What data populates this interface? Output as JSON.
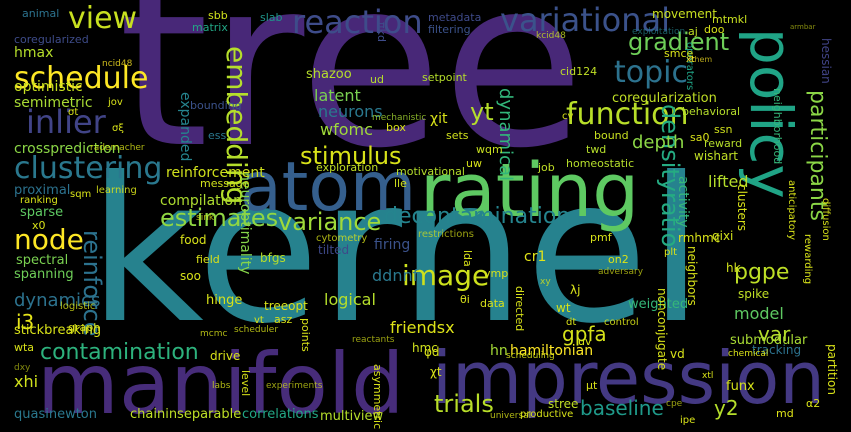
{
  "words": [
    {
      "id": "tree",
      "text": "tree",
      "color": "#482878"
    },
    {
      "id": "kernel",
      "text": "kernel",
      "color": "#26828e"
    },
    {
      "id": "manifold",
      "text": "manifold",
      "color": "#472c7a"
    },
    {
      "id": "impression",
      "text": "impression",
      "color": "#443983"
    },
    {
      "id": "atom",
      "text": "atom",
      "color": "#355f8d"
    },
    {
      "id": "rating",
      "text": "rating",
      "color": "#5ec962"
    },
    {
      "id": "policy",
      "text": "policy",
      "color": "#20a486"
    },
    {
      "id": "reaction",
      "text": "reaction",
      "color": "#3e4c8a"
    },
    {
      "id": "variational",
      "text": "variational",
      "color": "#3b528b"
    },
    {
      "id": "view",
      "text": "view",
      "color": "#c8e020"
    },
    {
      "id": "schedule",
      "text": "schedule",
      "color": "#fde725"
    },
    {
      "id": "inlier",
      "text": "inlier",
      "color": "#414487"
    },
    {
      "id": "embedding",
      "text": "embedding",
      "color": "#b5de2b"
    },
    {
      "id": "function",
      "text": "function",
      "color": "#b8de29"
    },
    {
      "id": "topic",
      "text": "topic",
      "color": "#2c728e"
    },
    {
      "id": "gradient",
      "text": "gradient",
      "color": "#6ece58"
    },
    {
      "id": "clustering",
      "text": "clustering",
      "color": "#2a788e"
    },
    {
      "id": "stimulus",
      "text": "stimulus",
      "color": "#d8e219"
    },
    {
      "id": "node",
      "text": "node",
      "color": "#fde725"
    },
    {
      "id": "decontamination",
      "text": "decontamination",
      "color": "#25848e"
    },
    {
      "id": "estimates",
      "text": "estimates",
      "color": "#90d743"
    },
    {
      "id": "variance",
      "text": "variance",
      "color": "#a0da39"
    },
    {
      "id": "densityratio",
      "text": "densityratio",
      "color": "#25ab82"
    },
    {
      "id": "participants",
      "text": "participants",
      "color": "#8bd646"
    },
    {
      "id": "reinforce",
      "text": "reinforce",
      "color": "#2c728e"
    },
    {
      "id": "image",
      "text": "image",
      "color": "#cde11d"
    },
    {
      "id": "contamination",
      "text": "contamination",
      "color": "#2db27d"
    },
    {
      "id": "trials",
      "text": "trials",
      "color": "#b8de29"
    },
    {
      "id": "baseline",
      "text": "baseline",
      "color": "#1f9a8a"
    },
    {
      "id": "pgpe",
      "text": "pgpe",
      "color": "#bddf26"
    },
    {
      "id": "var",
      "text": "var",
      "color": "#b5de2b"
    },
    {
      "id": "gpfa",
      "text": "gpfa",
      "color": "#d5e21a"
    },
    {
      "id": "i3",
      "text": "i3",
      "color": "#e5e419"
    },
    {
      "id": "y2",
      "text": "y2",
      "color": "#b5de2b"
    },
    {
      "id": "yt",
      "text": "yt",
      "color": "#b5de2b"
    },
    {
      "id": "depth",
      "text": "depth",
      "color": "#8bd646"
    },
    {
      "id": "dynamical",
      "text": "dynamical",
      "color": "#32b67a"
    },
    {
      "id": "xhi",
      "text": "xhi",
      "color": "#d0e11c"
    },
    {
      "id": "dynamics",
      "text": "dynamics",
      "color": "#2c728e"
    },
    {
      "id": "model",
      "text": "model",
      "color": "#5ec962"
    },
    {
      "id": "latent",
      "text": "latent",
      "color": "#7ad151"
    },
    {
      "id": "neurons",
      "text": "neurons",
      "color": "#2a788e"
    },
    {
      "id": "wfomc",
      "text": "wfomc",
      "color": "#9fda3a"
    },
    {
      "id": "lifted",
      "text": "lifted",
      "color": "#b5de2b"
    },
    {
      "id": "expanded",
      "text": "expanded",
      "color": "#25848e"
    },
    {
      "id": "neuroptimality",
      "text": "neuroptimality",
      "color": "#86d549"
    },
    {
      "id": "crossprediction",
      "text": "crossprediction",
      "color": "#8bd646"
    },
    {
      "id": "semimetric",
      "text": "semimetric",
      "color": "#a8db34"
    },
    {
      "id": "optimistic",
      "text": "optimistic",
      "color": "#c8e020"
    },
    {
      "id": "hmax",
      "text": "hmax",
      "color": "#b5de2b"
    },
    {
      "id": "coregularization",
      "text": "coregularization",
      "color": "#c0df25"
    },
    {
      "id": "compilation",
      "text": "compilation",
      "color": "#addc30"
    },
    {
      "id": "reinforcement",
      "text": "reinforcement",
      "color": "#d0e11c"
    },
    {
      "id": "logical",
      "text": "logical",
      "color": "#b5de2b"
    },
    {
      "id": "ddnnf",
      "text": "ddnnf",
      "color": "#2a788e"
    },
    {
      "id": "friendsx",
      "text": "friendsx",
      "color": "#dde318"
    },
    {
      "id": "firing",
      "text": "firing",
      "color": "#3b528b"
    },
    {
      "id": "tilted",
      "text": "tilted",
      "color": "#3e4989"
    },
    {
      "id": "bfgs",
      "text": "bfgs",
      "color": "#b5de2b"
    },
    {
      "id": "cr1",
      "text": "cr1",
      "color": "#e2e418"
    },
    {
      "id": "hn",
      "text": "hn",
      "color": "#a5db36"
    },
    {
      "id": "hamiltonian",
      "text": "hamiltonian",
      "color": "#fde725"
    },
    {
      "id": "hmc",
      "text": "hmc",
      "color": "#d0e11c"
    },
    {
      "id": "stickbreaking",
      "text": "stickbreaking",
      "color": "#d8e219"
    },
    {
      "id": "spanning",
      "text": "spanning",
      "color": "#6ece58"
    },
    {
      "id": "spectral",
      "text": "spectral",
      "color": "#7ad151"
    },
    {
      "id": "proximal",
      "text": "proximal",
      "color": "#2c728e"
    },
    {
      "id": "sparse",
      "text": "sparse",
      "color": "#5ec962"
    },
    {
      "id": "quasinewton",
      "text": "quasinewton",
      "color": "#2a788e"
    },
    {
      "id": "chaininseparable",
      "text": "chaininseparable",
      "color": "#bddf26"
    },
    {
      "id": "correlations",
      "text": "correlations",
      "color": "#22a785"
    },
    {
      "id": "multiview",
      "text": "multiview",
      "color": "#b5de2b"
    },
    {
      "id": "stree",
      "text": "stree",
      "color": "#c0df25"
    },
    {
      "id": "funx",
      "text": "funx",
      "color": "#d5e21a"
    },
    {
      "id": "md",
      "text": "md",
      "color": "#dde318"
    },
    {
      "id": "weighted",
      "text": "weighted",
      "color": "#35b779"
    },
    {
      "id": "submodular",
      "text": "submodular",
      "color": "#a8db34"
    },
    {
      "id": "tracking",
      "text": "tracking",
      "color": "#2c728e"
    },
    {
      "id": "spike",
      "text": "spike",
      "color": "#c0df25"
    },
    {
      "id": "hk",
      "text": "hk",
      "color": "#d0e11c"
    },
    {
      "id": "rmhmc",
      "text": "rmhmc",
      "color": "#d8e219"
    },
    {
      "id": "qixi",
      "text": "qixi",
      "color": "#d0e11c"
    },
    {
      "id": "activity",
      "text": "activity",
      "color": "#35b779"
    },
    {
      "id": "wishart",
      "text": "wishart",
      "color": "#c0df25"
    },
    {
      "id": "reward",
      "text": "reward",
      "color": "#b5de2b"
    },
    {
      "id": "neighborhood",
      "text": "neighborhood",
      "color": "#35b779"
    },
    {
      "id": "movement",
      "text": "movement",
      "color": "#c8e020"
    },
    {
      "id": "mtmkl",
      "text": "mtmkl",
      "color": "#c8e020"
    },
    {
      "id": "slab",
      "text": "slab",
      "color": "#1f968b"
    },
    {
      "id": "sbb",
      "text": "sbb",
      "color": "#d0e11c"
    },
    {
      "id": "matrix",
      "text": "matrix",
      "color": "#22a785"
    },
    {
      "id": "animal",
      "text": "animal",
      "color": "#2c728e"
    },
    {
      "id": "coregularized",
      "text": "coregularized",
      "color": "#3e4c8a"
    },
    {
      "id": "metadata",
      "text": "metadata",
      "color": "#3e4a89"
    },
    {
      "id": "filtering",
      "text": "filtering",
      "color": "#3b528b"
    },
    {
      "id": "aj",
      "text": "aj",
      "color": "#c0df25"
    },
    {
      "id": "doo",
      "text": "doo",
      "color": "#d8e219"
    },
    {
      "id": "shazoo",
      "text": "shazoo",
      "color": "#b5de2b"
    },
    {
      "id": "setpoint",
      "text": "setpoint",
      "color": "#b5de2b"
    },
    {
      "id": "cid124",
      "text": "cid124",
      "color": "#c0df25"
    },
    {
      "id": "behavioral",
      "text": "behavioral",
      "color": "#b5de2b"
    },
    {
      "id": "operators",
      "text": "operators",
      "color": "#20a486"
    },
    {
      "id": "exploitation",
      "text": "exploitation",
      "color": "#25848e"
    },
    {
      "id": "chi_t",
      "text": "χit",
      "color": "#d8e219"
    },
    {
      "id": "box",
      "text": "box",
      "color": "#d8e219"
    },
    {
      "id": "sets",
      "text": "sets",
      "color": "#d0e11c"
    },
    {
      "id": "bound",
      "text": "bound",
      "color": "#c8e020"
    },
    {
      "id": "ssn",
      "text": "ssn",
      "color": "#d0e11c"
    },
    {
      "id": "twd",
      "text": "twd",
      "color": "#b5de2b"
    },
    {
      "id": "wqm",
      "text": "wqm",
      "color": "#c8e020"
    },
    {
      "id": "job",
      "text": "job",
      "color": "#c0df25"
    },
    {
      "id": "homeostatic",
      "text": "homeostatic",
      "color": "#b5de2b"
    },
    {
      "id": "motivational",
      "text": "motivational",
      "color": "#b5de2b"
    },
    {
      "id": "exploration",
      "text": "exploration",
      "color": "#c0df25"
    },
    {
      "id": "lle",
      "text": "lle",
      "color": "#d0e11c"
    },
    {
      "id": "message",
      "text": "message",
      "color": "#d0e11c"
    },
    {
      "id": "ess",
      "text": "ess",
      "color": "#2a788e"
    },
    {
      "id": "bounding",
      "text": "bounding",
      "color": "#3b528b"
    },
    {
      "id": "mechanistic",
      "text": "mechanistic",
      "color": "#a8db34"
    },
    {
      "id": "ud",
      "text": "ud",
      "color": "#b5de2b"
    },
    {
      "id": "nkd",
      "text": "πkd",
      "color": "#3e4c8a"
    },
    {
      "id": "ncid48",
      "text": "ncid48",
      "color": "#fde725"
    },
    {
      "id": "kcid48",
      "text": "kcid48",
      "color": "#c8e020"
    },
    {
      "id": "chem",
      "text": "chem",
      "color": "#fde725"
    },
    {
      "id": "xt",
      "text": "xt",
      "color": "#fde725"
    },
    {
      "id": "hessian",
      "text": "hessian",
      "color": "#414487"
    },
    {
      "id": "smce",
      "text": "smce",
      "color": "#d8e219"
    },
    {
      "id": "cv",
      "text": "cv",
      "color": "#d8e219"
    },
    {
      "id": "jov",
      "text": "jov",
      "color": "#d8e219"
    },
    {
      "id": "sigma_t",
      "text": "σt",
      "color": "#d8e219"
    },
    {
      "id": "sigma_xi",
      "text": "σξ",
      "color": "#d8e219"
    },
    {
      "id": "sa0",
      "text": "sa0",
      "color": "#d8e219"
    },
    {
      "id": "uw",
      "text": "uw",
      "color": "#d8e219"
    },
    {
      "id": "rademacher",
      "text": "rademacher",
      "color": "#d8e219"
    },
    {
      "id": "learning",
      "text": "learning",
      "color": "#d8e219"
    },
    {
      "id": "sqm",
      "text": "sqm",
      "color": "#d8e219"
    },
    {
      "id": "ranking",
      "text": "ranking",
      "color": "#d8e219"
    },
    {
      "id": "x0",
      "text": "x0",
      "color": "#d8e219"
    },
    {
      "id": "food",
      "text": "food",
      "color": "#d8e219"
    },
    {
      "id": "sink",
      "text": "sink",
      "color": "#d8e219"
    },
    {
      "id": "cytometry",
      "text": "cytometry",
      "color": "#d8e219"
    },
    {
      "id": "restrictions",
      "text": "restrictions",
      "color": "#d8e219"
    },
    {
      "id": "pmf",
      "text": "pmf",
      "color": "#d8e219"
    },
    {
      "id": "on2",
      "text": "on2",
      "color": "#d8e219"
    },
    {
      "id": "plt",
      "text": "plt",
      "color": "#d8e219"
    },
    {
      "id": "clusters",
      "text": "clusters",
      "color": "#d8e219"
    },
    {
      "id": "anticipatory",
      "text": "anticipatory",
      "color": "#d8e219"
    },
    {
      "id": "rewarding",
      "text": "rewarding",
      "color": "#d8e219"
    },
    {
      "id": "diffusion",
      "text": "diffusion",
      "color": "#d8e219"
    },
    {
      "id": "partition",
      "text": "partition",
      "color": "#d8e219"
    },
    {
      "id": "field",
      "text": "field",
      "color": "#d8e219"
    },
    {
      "id": "soo",
      "text": "soo",
      "color": "#d8e219"
    },
    {
      "id": "hinge",
      "text": "hinge",
      "color": "#d8e219"
    },
    {
      "id": "logistic",
      "text": "logistic",
      "color": "#d8e219"
    },
    {
      "id": "graph",
      "text": "graph",
      "color": "#d8e219"
    },
    {
      "id": "treeopt",
      "text": "treeopt",
      "color": "#d8e219"
    },
    {
      "id": "asz",
      "text": "asz",
      "color": "#d8e219"
    },
    {
      "id": "points",
      "text": "points",
      "color": "#d8e219"
    },
    {
      "id": "scheduler",
      "text": "scheduler",
      "color": "#d8e219"
    },
    {
      "id": "vt",
      "text": "vt",
      "color": "#d8e219"
    },
    {
      "id": "lda",
      "text": "lda",
      "color": "#d8e219"
    },
    {
      "id": "theta_i",
      "text": "θi",
      "color": "#d8e219"
    },
    {
      "id": "data",
      "text": "data",
      "color": "#d8e219"
    },
    {
      "id": "directed",
      "text": "directed",
      "color": "#d8e219"
    },
    {
      "id": "vmp",
      "text": "vmp",
      "color": "#d8e219"
    },
    {
      "id": "lambda_j",
      "text": "λj",
      "color": "#d8e219"
    },
    {
      "id": "xy",
      "text": "xy",
      "color": "#d8e219"
    },
    {
      "id": "wt",
      "text": "wt",
      "color": "#d8e219"
    },
    {
      "id": "adversary",
      "text": "adversary",
      "color": "#d8e219"
    },
    {
      "id": "nonconjugate",
      "text": "nonconjugate",
      "color": "#d8e219"
    },
    {
      "id": "neighbors",
      "text": "neighbors",
      "color": "#d8e219"
    },
    {
      "id": "control",
      "text": "control",
      "color": "#d8e219"
    },
    {
      "id": "dt",
      "text": "dt",
      "color": "#d8e219"
    },
    {
      "id": "phi_d",
      "text": "φd",
      "color": "#d8e219"
    },
    {
      "id": "uv",
      "text": "uv",
      "color": "#d8e219"
    },
    {
      "id": "scheduling",
      "text": "scheduling",
      "color": "#d8e219"
    },
    {
      "id": "vd",
      "text": "vd",
      "color": "#d8e219"
    },
    {
      "id": "chemical",
      "text": "chemical",
      "color": "#d8e219"
    },
    {
      "id": "mcmc",
      "text": "mcmc",
      "color": "#d8e219"
    },
    {
      "id": "reactants",
      "text": "reactants",
      "color": "#d8e219"
    },
    {
      "id": "drive",
      "text": "drive",
      "color": "#d8e219"
    },
    {
      "id": "wta",
      "text": "wta",
      "color": "#d8e219"
    },
    {
      "id": "chi_t2",
      "text": "χt",
      "color": "#d8e219"
    },
    {
      "id": "asymmetric",
      "text": "asymmetric",
      "color": "#d8e219"
    },
    {
      "id": "mu_t",
      "text": "μt",
      "color": "#d8e219"
    },
    {
      "id": "xtl",
      "text": "xtl",
      "color": "#d8e219"
    },
    {
      "id": "alpha2",
      "text": "α2",
      "color": "#d8e219"
    },
    {
      "id": "ipe",
      "text": "ipe",
      "color": "#d8e219"
    },
    {
      "id": "level",
      "text": "level",
      "color": "#d8e219"
    },
    {
      "id": "labs",
      "text": "labs",
      "color": "#d8e219"
    },
    {
      "id": "universal",
      "text": "universal",
      "color": "#d8e219"
    },
    {
      "id": "productive",
      "text": "productive",
      "color": "#d8e219"
    },
    {
      "id": "cpe",
      "text": "cpe",
      "color": "#d8e219"
    },
    {
      "id": "experiments",
      "text": "experiments",
      "color": "#d8e219"
    },
    {
      "id": "armbar",
      "text": "armbar",
      "color": "#d8e219"
    },
    {
      "id": "dxy",
      "text": "dxy",
      "color": "#d8e219"
    }
  ]
}
